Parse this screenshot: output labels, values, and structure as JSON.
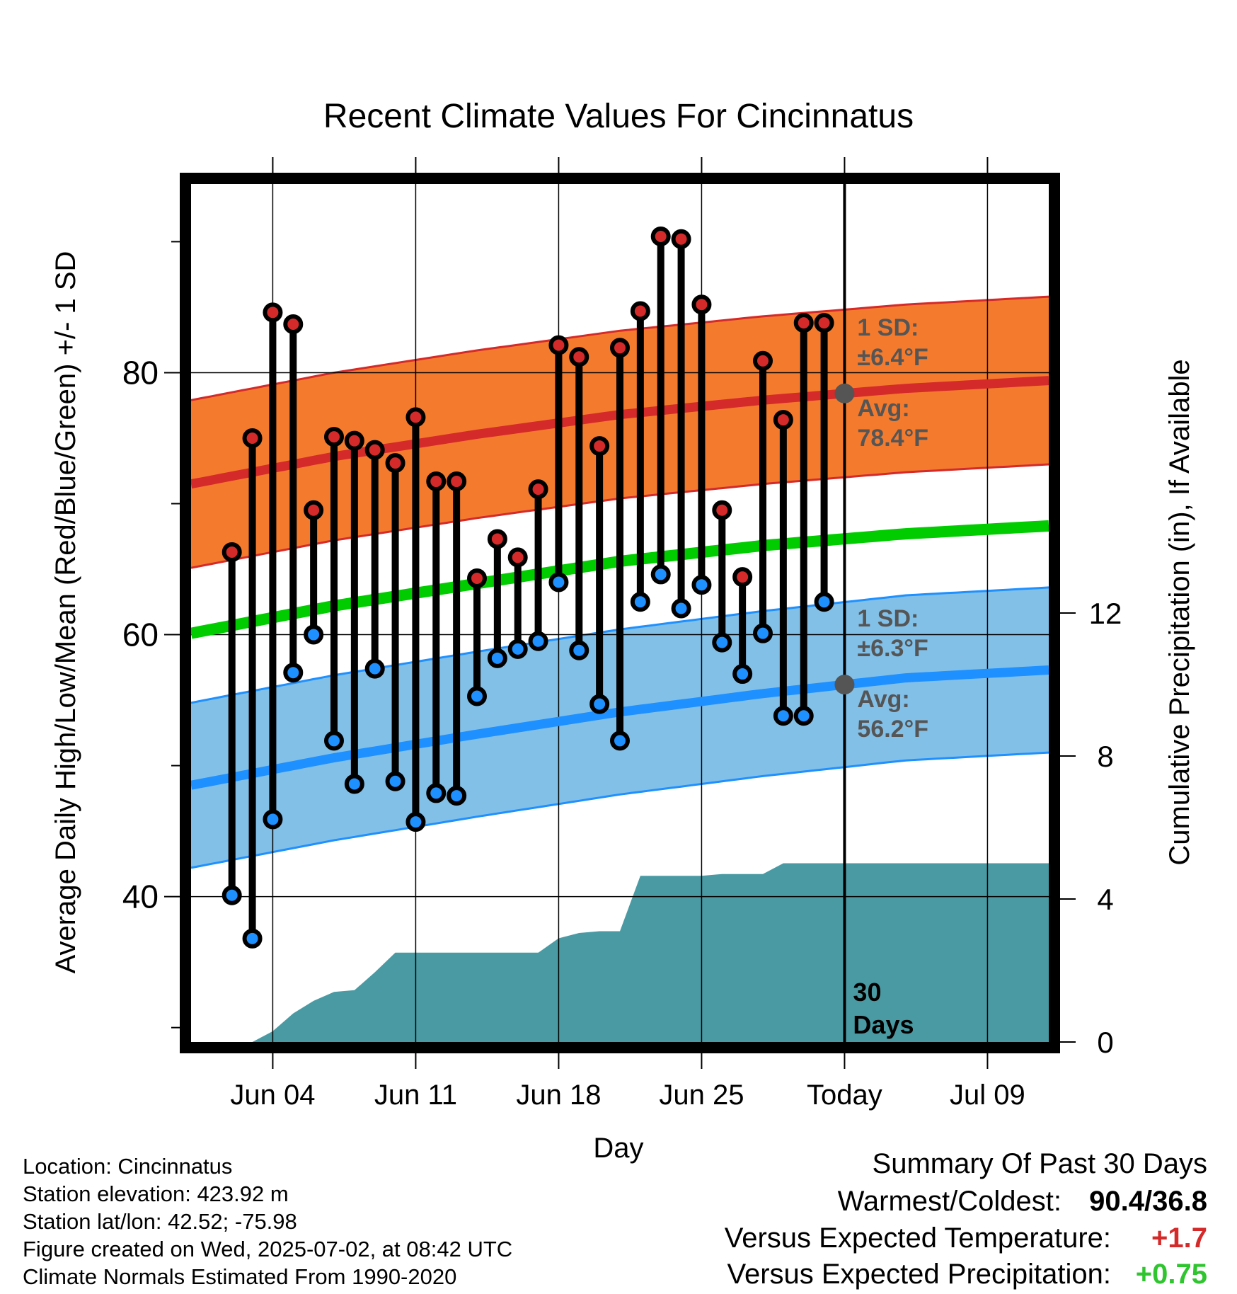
{
  "chart_data": {
    "type": "line",
    "title": "Recent Climate Values For Cincinnatus",
    "xlabel": "Day",
    "ylabel_left": "Average Daily High/Low/Mean (Red/Blue/Green) +/- 1 SD",
    "ylabel_right": "Cumulative Precipitation (in), If Available",
    "x_range": [
      "2025-05-31",
      "2025-07-12"
    ],
    "y_left_range": [
      28.9,
      94.4
    ],
    "y_right_range": [
      0,
      24.0
    ],
    "x_ticks": [
      {
        "date": "2025-06-04",
        "label": "Jun 04"
      },
      {
        "date": "2025-06-11",
        "label": "Jun 11"
      },
      {
        "date": "2025-06-18",
        "label": "Jun 18"
      },
      {
        "date": "2025-06-25",
        "label": "Jun 25"
      },
      {
        "date": "2025-07-02",
        "label": "Today"
      },
      {
        "date": "2025-07-09",
        "label": "Jul 09"
      }
    ],
    "y_left_ticks": [
      40,
      60,
      80
    ],
    "y_right_ticks": [
      0,
      4,
      8,
      12
    ],
    "dates": [
      "2025-06-02",
      "2025-06-03",
      "2025-06-04",
      "2025-06-05",
      "2025-06-06",
      "2025-06-07",
      "2025-06-08",
      "2025-06-09",
      "2025-06-10",
      "2025-06-11",
      "2025-06-12",
      "2025-06-13",
      "2025-06-14",
      "2025-06-15",
      "2025-06-16",
      "2025-06-17",
      "2025-06-18",
      "2025-06-19",
      "2025-06-20",
      "2025-06-21",
      "2025-06-22",
      "2025-06-23",
      "2025-06-24",
      "2025-06-25",
      "2025-06-26",
      "2025-06-27",
      "2025-06-28",
      "2025-06-29",
      "2025-06-30",
      "2025-07-01"
    ],
    "series": [
      {
        "name": "High",
        "color": "#d42a2a",
        "values": [
          66.3,
          75.0,
          84.6,
          83.7,
          69.5,
          75.1,
          74.8,
          74.1,
          73.1,
          76.6,
          71.7,
          71.7,
          64.3,
          67.3,
          65.9,
          71.1,
          82.1,
          81.2,
          74.4,
          81.9,
          84.7,
          90.4,
          90.2,
          85.2,
          69.5,
          64.4,
          80.9,
          76.4,
          83.8,
          83.8
        ]
      },
      {
        "name": "Low",
        "color": "#1e90ff",
        "values": [
          40.1,
          36.8,
          45.9,
          57.1,
          60.0,
          51.9,
          48.6,
          57.4,
          48.8,
          45.7,
          47.9,
          47.7,
          55.3,
          58.2,
          58.9,
          59.5,
          64.0,
          58.8,
          54.7,
          51.9,
          62.5,
          64.6,
          62.0,
          63.8,
          59.4,
          57.0,
          60.1,
          53.8,
          53.8,
          62.5
        ]
      }
    ],
    "normals": {
      "dates": [
        "2025-05-31",
        "2025-06-07",
        "2025-06-14",
        "2025-06-21",
        "2025-06-28",
        "2025-07-05",
        "2025-07-12"
      ],
      "avg_high": [
        71.5,
        73.6,
        75.3,
        76.8,
        77.9,
        78.8,
        79.4
      ],
      "avg_low": [
        48.5,
        50.6,
        52.4,
        54.1,
        55.5,
        56.7,
        57.3
      ],
      "avg_mean": [
        60.1,
        62.2,
        63.9,
        65.6,
        66.8,
        67.7,
        68.3
      ],
      "high_sd": 6.4,
      "low_sd": 6.3
    },
    "precipitation_cumulative": {
      "dates": [
        "2025-06-03",
        "2025-06-04",
        "2025-06-05",
        "2025-06-06",
        "2025-06-07",
        "2025-06-08",
        "2025-06-09",
        "2025-06-10",
        "2025-06-11",
        "2025-06-12",
        "2025-06-13",
        "2025-06-14",
        "2025-06-15",
        "2025-06-16",
        "2025-06-17",
        "2025-06-18",
        "2025-06-19",
        "2025-06-20",
        "2025-06-21",
        "2025-06-22",
        "2025-06-23",
        "2025-06-24",
        "2025-06-25",
        "2025-06-26",
        "2025-06-27",
        "2025-06-28",
        "2025-06-29",
        "2025-06-30",
        "2025-07-01",
        "2025-07-02",
        "2025-07-12"
      ],
      "values": [
        0.0,
        0.3,
        0.8,
        1.15,
        1.4,
        1.45,
        1.95,
        2.5,
        2.5,
        2.5,
        2.5,
        2.5,
        2.5,
        2.5,
        2.5,
        2.9,
        3.05,
        3.1,
        3.1,
        4.65,
        4.65,
        4.65,
        4.65,
        4.7,
        4.7,
        4.7,
        5.0,
        5.0,
        5.0,
        5.0,
        5.0
      ]
    },
    "annotations": {
      "today": "2025-07-02",
      "high_sd_label": "1 SD:",
      "high_sd_value": "±6.4°F",
      "high_avg_label": "Avg:",
      "high_avg_value": "78.4°F",
      "low_sd_label": "1 SD:",
      "low_sd_value": "±6.3°F",
      "low_avg_label": "Avg:",
      "low_avg_value": "56.2°F",
      "window_num": "30",
      "window_unit": "Days"
    },
    "colors": {
      "high_band": "#f47b2e",
      "high_line": "#d42a2a",
      "low_band": "#82c0e8",
      "low_line": "#1e90ff",
      "mean_line": "#00cc00",
      "precip": "#4a9aa3",
      "annotation": "#555555"
    }
  },
  "footer": {
    "left": [
      "Location: Cincinnatus",
      "Station elevation: 423.92 m",
      "Station lat/lon: 42.52; -75.98",
      "Figure created on Wed, 2025-07-02, at 08:42 UTC",
      "Climate Normals Estimated From 1990-2020"
    ],
    "summary_title": "Summary Of Past 30 Days",
    "warmest_label": "Warmest/Coldest:",
    "warmest_value": "90.4/36.8",
    "temp_label": "Versus Expected Temperature:",
    "temp_value": "+1.7",
    "temp_color": "#d42a2a",
    "precip_label": "Versus Expected Precipitation:",
    "precip_value": "+0.75",
    "precip_color": "#2ec52e"
  }
}
